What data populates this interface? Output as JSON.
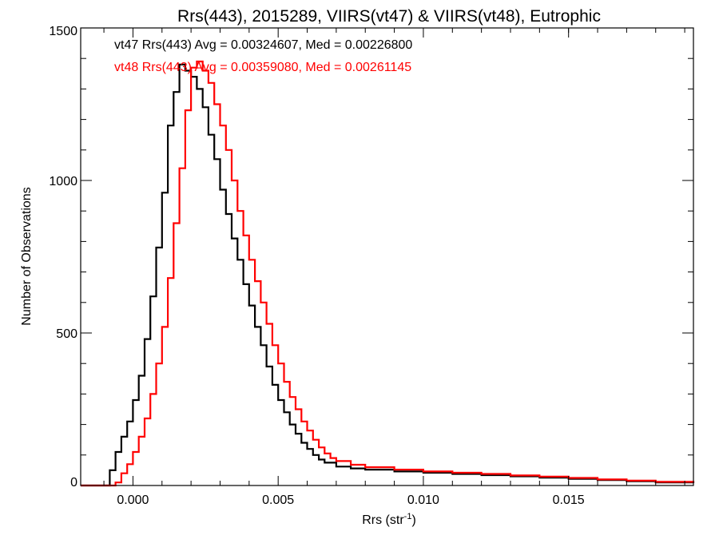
{
  "chart_data": {
    "type": "line",
    "title": "Rrs(443), 2015289, VIIRS(vt47) & VIIRS(vt48), Eutrophic",
    "xlabel": "Rrs (str",
    "xlabel_sup": "-1",
    "xlabel_close": ")",
    "ylabel": "Number of Observations",
    "xlim": [
      -0.0018,
      0.0193
    ],
    "ylim": [
      0,
      1500
    ],
    "x_ticks": [
      0.0,
      0.005,
      0.01,
      0.015
    ],
    "x_tick_labels": [
      "0.000",
      "0.005",
      "0.010",
      "0.015"
    ],
    "y_ticks": [
      0,
      500,
      1000,
      1500
    ],
    "y_tick_labels": [
      "0",
      "500",
      "1000",
      "1500"
    ],
    "grid": false,
    "legend_position": "top-left",
    "annotations": [
      {
        "text": "vt47 Rrs(443) Avg = 0.00324607, Med = 0.00226800",
        "color": "#000000"
      },
      {
        "text": "vt48 Rrs(443) Avg = 0.00359080, Med = 0.00261145",
        "color": "#ff0000"
      }
    ],
    "series": [
      {
        "color": "#000000",
        "points": [
          [
            -0.0018,
            0
          ],
          [
            -0.001,
            0
          ],
          [
            -0.0008,
            50
          ],
          [
            -0.0006,
            110
          ],
          [
            -0.0004,
            160
          ],
          [
            -0.0002,
            210
          ],
          [
            0.0,
            280
          ],
          [
            0.0002,
            360
          ],
          [
            0.0004,
            480
          ],
          [
            0.0006,
            620
          ],
          [
            0.0008,
            780
          ],
          [
            0.001,
            960
          ],
          [
            0.0012,
            1180
          ],
          [
            0.0014,
            1290
          ],
          [
            0.0016,
            1380
          ],
          [
            0.0018,
            1360
          ],
          [
            0.002,
            1340
          ],
          [
            0.0022,
            1300
          ],
          [
            0.0024,
            1240
          ],
          [
            0.0026,
            1150
          ],
          [
            0.0028,
            1070
          ],
          [
            0.003,
            970
          ],
          [
            0.0032,
            890
          ],
          [
            0.0034,
            810
          ],
          [
            0.0036,
            740
          ],
          [
            0.0038,
            660
          ],
          [
            0.004,
            590
          ],
          [
            0.0042,
            520
          ],
          [
            0.0044,
            460
          ],
          [
            0.0046,
            390
          ],
          [
            0.0048,
            330
          ],
          [
            0.005,
            280
          ],
          [
            0.0052,
            240
          ],
          [
            0.0054,
            200
          ],
          [
            0.0056,
            170
          ],
          [
            0.0058,
            140
          ],
          [
            0.006,
            120
          ],
          [
            0.0062,
            100
          ],
          [
            0.0064,
            85
          ],
          [
            0.0066,
            75
          ],
          [
            0.007,
            62
          ],
          [
            0.0075,
            56
          ],
          [
            0.008,
            52
          ],
          [
            0.009,
            46
          ],
          [
            0.01,
            42
          ],
          [
            0.011,
            38
          ],
          [
            0.012,
            34
          ],
          [
            0.013,
            30
          ],
          [
            0.014,
            26
          ],
          [
            0.015,
            22
          ],
          [
            0.016,
            18
          ],
          [
            0.017,
            14
          ],
          [
            0.018,
            10
          ],
          [
            0.0193,
            8
          ]
        ]
      },
      {
        "color": "#ff0000",
        "points": [
          [
            -0.0018,
            0
          ],
          [
            -0.0008,
            0
          ],
          [
            -0.0006,
            10
          ],
          [
            -0.0004,
            40
          ],
          [
            -0.0002,
            70
          ],
          [
            0.0,
            110
          ],
          [
            0.0002,
            160
          ],
          [
            0.0004,
            220
          ],
          [
            0.0006,
            300
          ],
          [
            0.0008,
            400
          ],
          [
            0.001,
            520
          ],
          [
            0.0012,
            680
          ],
          [
            0.0014,
            860
          ],
          [
            0.0016,
            1040
          ],
          [
            0.0018,
            1230
          ],
          [
            0.002,
            1370
          ],
          [
            0.0022,
            1390
          ],
          [
            0.0024,
            1360
          ],
          [
            0.0026,
            1320
          ],
          [
            0.0028,
            1250
          ],
          [
            0.003,
            1180
          ],
          [
            0.0032,
            1100
          ],
          [
            0.0034,
            1000
          ],
          [
            0.0036,
            900
          ],
          [
            0.0038,
            820
          ],
          [
            0.004,
            740
          ],
          [
            0.0042,
            670
          ],
          [
            0.0044,
            600
          ],
          [
            0.0046,
            530
          ],
          [
            0.0048,
            460
          ],
          [
            0.005,
            400
          ],
          [
            0.0052,
            340
          ],
          [
            0.0054,
            290
          ],
          [
            0.0056,
            250
          ],
          [
            0.0058,
            210
          ],
          [
            0.006,
            180
          ],
          [
            0.0062,
            150
          ],
          [
            0.0064,
            125
          ],
          [
            0.0066,
            105
          ],
          [
            0.0068,
            90
          ],
          [
            0.007,
            80
          ],
          [
            0.0075,
            68
          ],
          [
            0.008,
            60
          ],
          [
            0.009,
            52
          ],
          [
            0.01,
            46
          ],
          [
            0.011,
            42
          ],
          [
            0.012,
            38
          ],
          [
            0.013,
            33
          ],
          [
            0.014,
            29
          ],
          [
            0.015,
            25
          ],
          [
            0.016,
            20
          ],
          [
            0.017,
            16
          ],
          [
            0.018,
            12
          ],
          [
            0.0193,
            10
          ]
        ]
      }
    ]
  }
}
